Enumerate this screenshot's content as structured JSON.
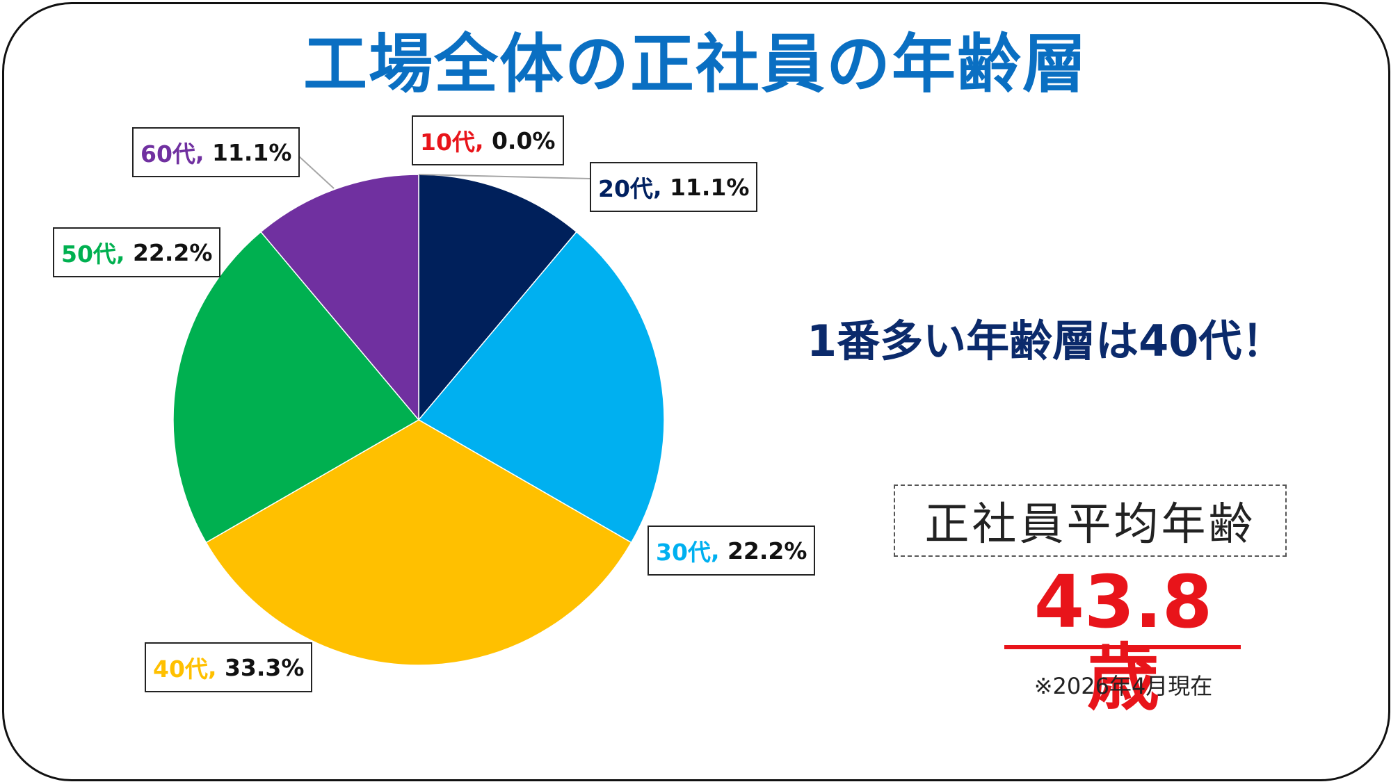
{
  "title": "工場全体の正社員の年齢層",
  "headline": "1番多い年齢層は40代！",
  "average": {
    "label": "正社員平均年齢",
    "value": "43.8歳",
    "note": "※2026年4月現在"
  },
  "chart_data": {
    "type": "pie",
    "slices": [
      {
        "name": "10代",
        "value": 0.0,
        "label": "0.0%",
        "color": "#000000",
        "label_color": "#e8141a"
      },
      {
        "name": "20代",
        "value": 11.1,
        "label": "11.1%",
        "color": "#00205b",
        "label_color": "#002060"
      },
      {
        "name": "30代",
        "value": 22.2,
        "label": "22.2%",
        "color": "#00b0f0",
        "label_color": "#00b0f0"
      },
      {
        "name": "40代",
        "value": 33.3,
        "label": "33.3%",
        "color": "#ffc000",
        "label_color": "#ffc000"
      },
      {
        "name": "50代",
        "value": 22.2,
        "label": "22.2%",
        "color": "#00b050",
        "label_color": "#00b050"
      },
      {
        "name": "60代",
        "value": 11.1,
        "label": "11.1%",
        "color": "#7030a0",
        "label_color": "#7030a0"
      }
    ]
  }
}
